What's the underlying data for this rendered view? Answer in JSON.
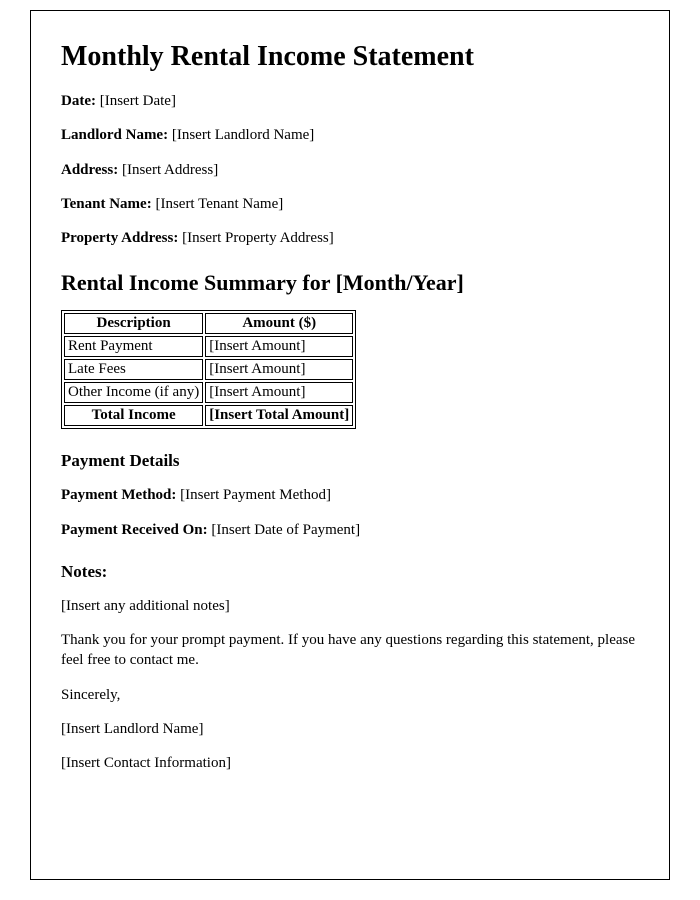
{
  "title": "Monthly Rental Income Statement",
  "fields": {
    "date": {
      "label": "Date:",
      "value": "[Insert Date]"
    },
    "landlord": {
      "label": "Landlord Name:",
      "value": "[Insert Landlord Name]"
    },
    "address": {
      "label": "Address:",
      "value": "[Insert Address]"
    },
    "tenant": {
      "label": "Tenant Name:",
      "value": "[Insert Tenant Name]"
    },
    "property": {
      "label": "Property Address:",
      "value": "[Insert Property Address]"
    }
  },
  "summary": {
    "heading_prefix": "Rental Income Summary for ",
    "period": "[Month/Year]",
    "columns": [
      "Description",
      "Amount ($)"
    ],
    "rows": [
      {
        "desc": "Rent Payment",
        "amount": "[Insert Amount]"
      },
      {
        "desc": "Late Fees",
        "amount": "[Insert Amount]"
      },
      {
        "desc": "Other Income (if any)",
        "amount": "[Insert Amount]"
      }
    ],
    "total": {
      "label": "Total Income",
      "amount": "[Insert Total Amount]"
    }
  },
  "payment": {
    "heading": "Payment Details",
    "method": {
      "label": "Payment Method:",
      "value": "[Insert Payment Method]"
    },
    "received": {
      "label": "Payment Received On:",
      "value": "[Insert Date of Payment]"
    }
  },
  "notes": {
    "heading": "Notes:",
    "placeholder": "[Insert any additional notes]",
    "thankyou": "Thank you for your prompt payment. If you have any questions regarding this statement, please feel free to contact me.",
    "closing": "Sincerely,",
    "signature_name": "[Insert Landlord Name]",
    "contact": "[Insert Contact Information]"
  },
  "style": {
    "background_color": "#ffffff",
    "border_color": "#000000",
    "text_color": "#000000",
    "h1_fontsize": 28,
    "h2_fontsize": 22,
    "h3_fontsize": 17,
    "body_fontsize": 15
  }
}
